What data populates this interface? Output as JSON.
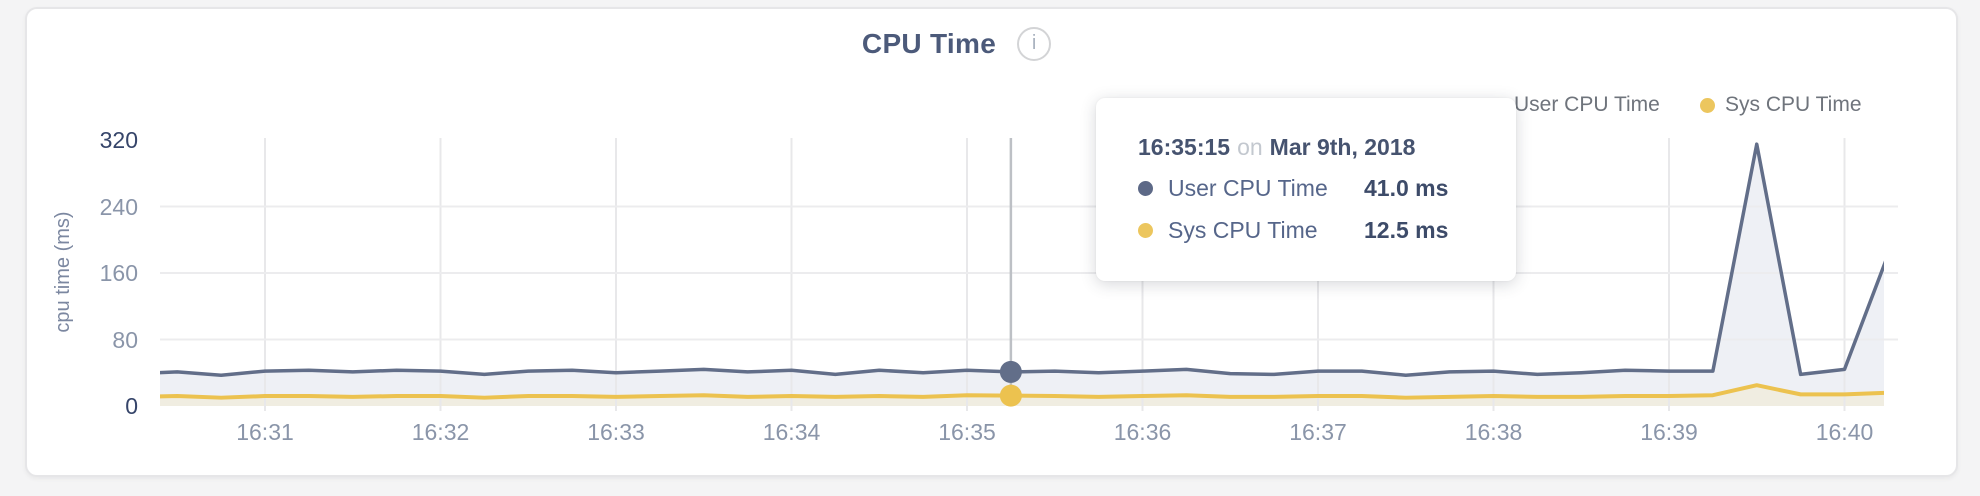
{
  "header": {
    "title": "CPU Time",
    "info_icon_glyph": "i"
  },
  "legend": {
    "items": [
      {
        "label": "User CPU Time",
        "color": "#5d6987"
      },
      {
        "label": "Sys CPU Time",
        "color": "#ecc65e"
      }
    ]
  },
  "tooltip": {
    "time": "16:35:15",
    "conjunction": "on",
    "date": "Mar 9th, 2018",
    "rows": [
      {
        "label": "User CPU Time",
        "value": "41.0 ms",
        "color": "#5d6987"
      },
      {
        "label": "Sys CPU Time",
        "value": "12.5 ms",
        "color": "#ecc65e"
      }
    ]
  },
  "chart_data": {
    "type": "area",
    "title": "CPU Time",
    "ylabel": "cpu time (ms)",
    "ylim": [
      0,
      320
    ],
    "y_ticks": [
      320,
      240,
      160,
      80,
      0
    ],
    "x_tick_labels": [
      "16:31",
      "16:32",
      "16:33",
      "16:34",
      "16:35",
      "16:36",
      "16:37",
      "16:38",
      "16:39",
      "16:40"
    ],
    "grid": true,
    "legend_position": "top-right",
    "x": [
      "16:30:15",
      "16:30:30",
      "16:30:45",
      "16:31:00",
      "16:31:15",
      "16:31:30",
      "16:31:45",
      "16:32:00",
      "16:32:15",
      "16:32:30",
      "16:32:45",
      "16:33:00",
      "16:33:15",
      "16:33:30",
      "16:33:45",
      "16:34:00",
      "16:34:15",
      "16:34:30",
      "16:34:45",
      "16:35:00",
      "16:35:15",
      "16:35:30",
      "16:35:45",
      "16:36:00",
      "16:36:15",
      "16:36:30",
      "16:36:45",
      "16:37:00",
      "16:37:15",
      "16:37:30",
      "16:37:45",
      "16:38:00",
      "16:38:15",
      "16:38:30",
      "16:38:45",
      "16:39:00",
      "16:39:15",
      "16:39:30",
      "16:39:45",
      "16:40:00",
      "16:40:15"
    ],
    "series": [
      {
        "name": "User CPU Time",
        "color": "#626e89",
        "fill": "#eef0f5",
        "values": [
          39,
          41,
          37,
          42,
          43,
          41,
          43,
          42,
          38,
          42,
          43,
          40,
          42,
          44,
          41,
          43,
          38,
          43,
          40,
          43,
          41,
          42,
          40,
          42,
          44,
          39,
          38,
          42,
          42,
          37,
          41,
          42,
          38,
          40,
          43,
          42,
          42,
          315,
          38,
          44,
          183
        ]
      },
      {
        "name": "Sys CPU Time",
        "color": "#ecc24f",
        "fill": "#f0ede1",
        "values": [
          11,
          12,
          10,
          12,
          12,
          11,
          12,
          12,
          10,
          12,
          12,
          11,
          12,
          13,
          11,
          12,
          11,
          12,
          11,
          13,
          12.5,
          12,
          11,
          12,
          13,
          11,
          11,
          12,
          12,
          10,
          11,
          12,
          11,
          11,
          12,
          12,
          13,
          25,
          14,
          14,
          16
        ]
      }
    ],
    "highlight": {
      "time": "16:35:15",
      "values": [
        41.0,
        12.5
      ]
    }
  }
}
